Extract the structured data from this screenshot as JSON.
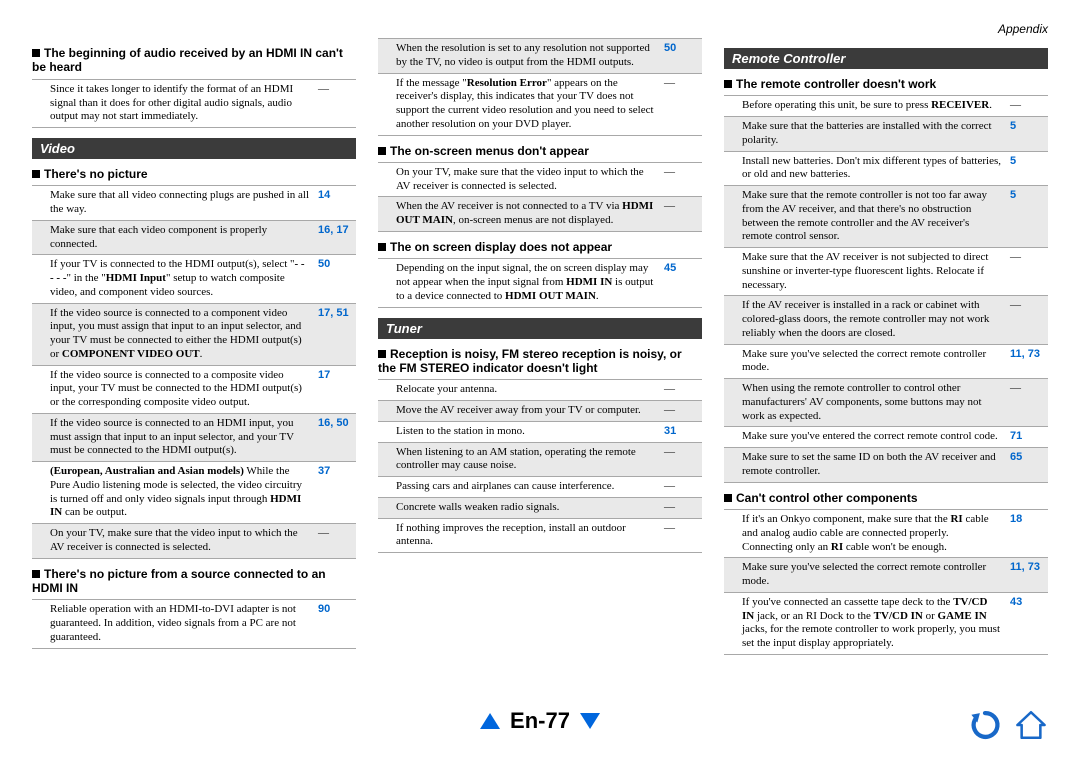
{
  "appendix_label": "Appendix",
  "page_number": "En-77",
  "colors": {
    "section_header_bg": "#3b3b3b",
    "section_header_fg": "#ffffff",
    "row_shade": "#e9e9e9",
    "ref_link": "#0066cc",
    "nav_triangle": "#0066dd",
    "back_icon": "#1868c8",
    "home_icon_fill": "#ffffff",
    "home_icon_outline": "#1868c8"
  },
  "col1": {
    "sub1": {
      "title": "The beginning of audio received by an HDMI IN can't be heard",
      "rows": [
        {
          "text": "Since it takes longer to identify the format of an HDMI signal than it does for other digital audio signals, audio output may not start immediately.",
          "ref": "—",
          "shade": false,
          "dash": true
        }
      ]
    },
    "section_video": "Video",
    "sub2": {
      "title": "There's no picture",
      "rows": [
        {
          "text": "Make sure that all video connecting plugs are pushed in all the way.",
          "ref": "14",
          "shade": false
        },
        {
          "text": "Make sure that each video component is properly connected.",
          "ref": "16, 17",
          "shade": true
        },
        {
          "text_html": "If your TV is connected to the HDMI output(s), select \"<span class='b'>- - - - -</span>\" in the \"<span class='b'>HDMI Input</span>\" setup to watch composite video, and component video sources.",
          "ref": "50",
          "shade": false
        },
        {
          "text_html": "If the video source is connected to a component video input, you must assign that input to an input selector, and your TV must be connected to either the HDMI output(s) or <span class='b'>COMPONENT VIDEO OUT</span>.",
          "ref": "17, 51",
          "shade": true
        },
        {
          "text": "If the video source is connected to a composite video input, your TV must be connected to the HDMI output(s) or the corresponding composite video output.",
          "ref": "17",
          "shade": false
        },
        {
          "text": "If the video source is connected to an HDMI input, you must assign that input to an input selector, and your TV must be connected to the HDMI output(s).",
          "ref": "16, 50",
          "shade": true
        },
        {
          "text_html": "<span class='b'>(European, Australian and Asian models)</span> While the Pure Audio listening mode is selected, the video circuitry is turned off and only video signals input through <span class='b'>HDMI IN</span> can be output.",
          "ref": "37",
          "shade": false
        },
        {
          "text": "On your TV, make sure that the video input to which the AV receiver is connected is selected.",
          "ref": "—",
          "shade": true,
          "dash": true
        }
      ]
    },
    "sub3": {
      "title": "There's no picture from a source connected to an HDMI IN",
      "rows": [
        {
          "text": "Reliable operation with an HDMI-to-DVI adapter is not guaranteed. In addition, video signals from a PC are not guaranteed.",
          "ref": "90",
          "shade": false
        }
      ]
    }
  },
  "col2": {
    "toprows": [
      {
        "text": "When the resolution is set to any resolution not supported by the TV, no video is output from the HDMI outputs.",
        "ref": "50",
        "shade": true
      },
      {
        "text_html": "If the message \"<span class='b'>Resolution Error</span>\" appears on the receiver's display, this indicates that your TV does not support the current video resolution and you need to select another resolution on your DVD player.",
        "ref": "—",
        "shade": false,
        "dash": true
      }
    ],
    "sub1": {
      "title": "The on-screen menus don't appear",
      "rows": [
        {
          "text": "On your TV, make sure that the video input to which the AV receiver is connected is selected.",
          "ref": "—",
          "shade": false,
          "dash": true
        },
        {
          "text_html": "When the AV receiver is not connected to a TV via <span class='b'>HDMI OUT MAIN</span>, on-screen menus are not displayed.",
          "ref": "—",
          "shade": true,
          "dash": true
        }
      ]
    },
    "sub2": {
      "title": "The on screen display does not appear",
      "rows": [
        {
          "text_html": "Depending on the input signal, the on screen display may not appear when the input signal from <span class='b'>HDMI IN</span> is output to a device connected to <span class='b'>HDMI OUT MAIN</span>.",
          "ref": "45",
          "shade": false
        }
      ]
    },
    "section_tuner": "Tuner",
    "sub3": {
      "title": "Reception is noisy, FM stereo reception is noisy, or the FM STEREO indicator doesn't light",
      "rows": [
        {
          "text": "Relocate your antenna.",
          "ref": "—",
          "shade": false,
          "dash": true
        },
        {
          "text": "Move the AV receiver away from your TV or computer.",
          "ref": "—",
          "shade": true,
          "dash": true
        },
        {
          "text": "Listen to the station in mono.",
          "ref": "31",
          "shade": false
        },
        {
          "text": "When listening to an AM station, operating the remote controller may cause noise.",
          "ref": "—",
          "shade": true,
          "dash": true
        },
        {
          "text": "Passing cars and airplanes can cause interference.",
          "ref": "—",
          "shade": false,
          "dash": true
        },
        {
          "text": "Concrete walls weaken radio signals.",
          "ref": "—",
          "shade": true,
          "dash": true
        },
        {
          "text": "If nothing improves the reception, install an outdoor antenna.",
          "ref": "—",
          "shade": false,
          "dash": true
        }
      ]
    }
  },
  "col3": {
    "section_remote": "Remote Controller",
    "sub1": {
      "title": "The remote controller doesn't work",
      "rows": [
        {
          "text_html": "Before operating this unit, be sure to press <span class='b'>RECEIVER</span>.",
          "ref": "—",
          "shade": false,
          "dash": true
        },
        {
          "text": "Make sure that the batteries are installed with the correct polarity.",
          "ref": "5",
          "shade": true
        },
        {
          "text": "Install new batteries. Don't mix different types of batteries, or old and new batteries.",
          "ref": "5",
          "shade": false
        },
        {
          "text": "Make sure that the remote controller is not too far away from the AV receiver, and that there's no obstruction between the remote controller and the AV receiver's remote control sensor.",
          "ref": "5",
          "shade": true
        },
        {
          "text": "Make sure that the AV receiver is not subjected to direct sunshine or inverter-type fluorescent lights. Relocate if necessary.",
          "ref": "—",
          "shade": false,
          "dash": true
        },
        {
          "text": "If the AV receiver is installed in a rack or cabinet with colored-glass doors, the remote controller may not work reliably when the doors are closed.",
          "ref": "—",
          "shade": true,
          "dash": true
        },
        {
          "text": "Make sure you've selected the correct remote controller mode.",
          "ref": "11, 73",
          "shade": false
        },
        {
          "text": "When using the remote controller to control other manufacturers' AV components, some buttons may not work as expected.",
          "ref": "—",
          "shade": true,
          "dash": true
        },
        {
          "text": "Make sure you've entered the correct remote control code.",
          "ref": "71",
          "shade": false
        },
        {
          "text": "Make sure to set the same ID on both the AV receiver and remote controller.",
          "ref": "65",
          "shade": true
        }
      ]
    },
    "sub2": {
      "title": "Can't control other components",
      "rows": [
        {
          "text_html": "If it's an Onkyo component, make sure that the <span class='b'>RI</span> cable and analog audio cable are connected properly. Connecting only an <span class='b'>RI</span> cable won't be enough.",
          "ref": "18",
          "shade": false
        },
        {
          "text": "Make sure you've selected the correct remote controller mode.",
          "ref": "11, 73",
          "shade": true
        },
        {
          "text_html": "If you've connected an cassette tape deck to the <span class='b'>TV/CD IN</span> jack, or an RI Dock to the <span class='b'>TV/CD IN</span> or <span class='b'>GAME IN</span> jacks, for the remote controller to work properly, you must set the input display appropriately.",
          "ref": "43",
          "shade": false
        }
      ]
    }
  }
}
